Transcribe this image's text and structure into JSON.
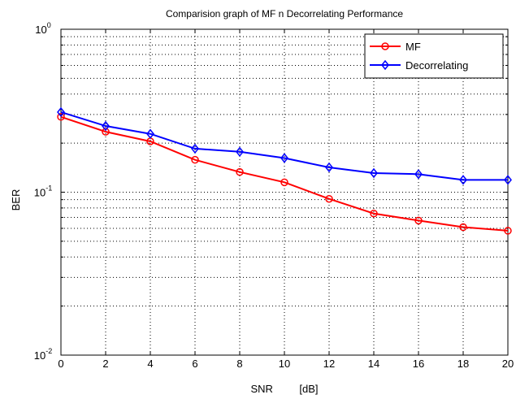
{
  "chart_data": {
    "type": "line",
    "title": "Comparision graph of MF n Decorrelating Performance",
    "xlabel": "SNR         [dB]",
    "ylabel": "BER",
    "x": [
      0,
      2,
      4,
      6,
      8,
      10,
      12,
      14,
      16,
      18,
      20
    ],
    "x_ticks": [
      "0",
      "2",
      "4",
      "6",
      "8",
      "10",
      "12",
      "14",
      "16",
      "18",
      "20"
    ],
    "xlim": [
      0,
      20
    ],
    "ylim": [
      0.01,
      1
    ],
    "yscale": "log",
    "y_ticks": [
      {
        "base": "10",
        "exp": "0"
      },
      {
        "base": "10",
        "exp": "-1"
      },
      {
        "base": "10",
        "exp": "-2"
      }
    ],
    "grid": true,
    "legend_position": "top-right",
    "series": [
      {
        "name": "MF",
        "color": "#ff0000",
        "marker": "circle",
        "values": [
          0.29,
          0.235,
          0.205,
          0.158,
          0.133,
          0.115,
          0.091,
          0.074,
          0.067,
          0.061,
          0.058
        ]
      },
      {
        "name": "Decorrelating",
        "color": "#0000ff",
        "marker": "diamond",
        "values": [
          0.31,
          0.255,
          0.228,
          0.185,
          0.177,
          0.162,
          0.142,
          0.131,
          0.129,
          0.119,
          0.119
        ]
      }
    ]
  }
}
